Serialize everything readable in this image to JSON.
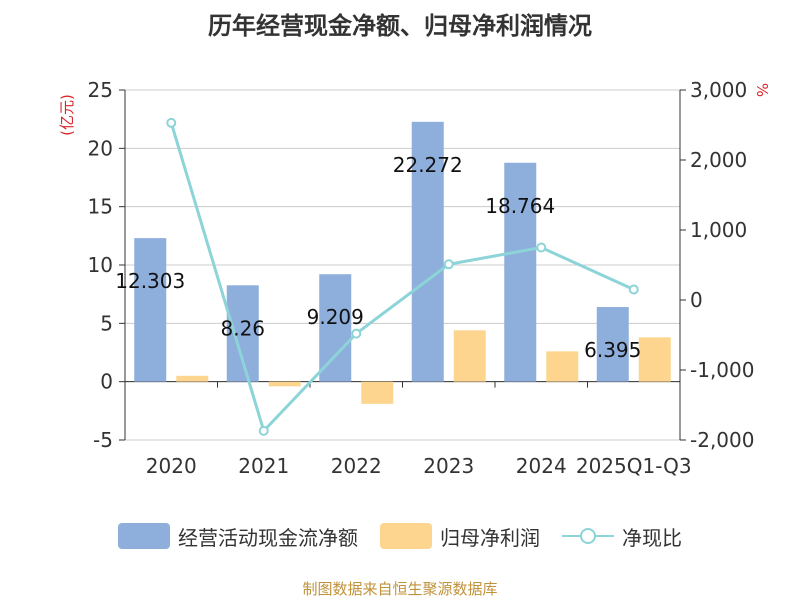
{
  "title": "历年经营现金净额、归母净利润情况",
  "source": "制图数据来自恒生聚源数据库",
  "colors": {
    "bar1": "#8eaedc",
    "bar2": "#fdd58e",
    "line": "#8dd4d8",
    "unit_left": "#d9262b",
    "unit_right": "#d9262b",
    "grid": "#cccccc",
    "text": "#333333"
  },
  "chart_data": {
    "type": "bar",
    "title": "历年经营现金净额、归母净利润情况",
    "categories": [
      "2020",
      "2021",
      "2022",
      "2023",
      "2024",
      "2025Q1-Q3"
    ],
    "y_left": {
      "unit": "(亿元)",
      "min": -5,
      "max": 25,
      "ticks": [
        -5,
        0,
        5,
        10,
        15,
        20,
        25
      ]
    },
    "y_right": {
      "unit": "%",
      "min": -2000,
      "max": 3000,
      "ticks": [
        -2000,
        -1000,
        0,
        1000,
        2000,
        3000
      ],
      "tick_labels": [
        "-2,000",
        "-1,000",
        "0",
        "1,000",
        "2,000",
        "3,000"
      ]
    },
    "series": [
      {
        "name": "经营活动现金流净额",
        "type": "bar",
        "axis": "left",
        "values": [
          12.303,
          8.26,
          9.209,
          22.272,
          18.764,
          6.395
        ],
        "data_labels": [
          "12.303",
          "8.26",
          "9.209",
          "22.272",
          "18.764",
          "6.395"
        ]
      },
      {
        "name": "归母净利润",
        "type": "bar",
        "axis": "left",
        "values": [
          0.5,
          -0.4,
          -1.9,
          4.4,
          2.6,
          3.8
        ]
      },
      {
        "name": "净现比",
        "type": "line",
        "axis": "right",
        "values": [
          2530,
          -1870,
          -480,
          510,
          750,
          150
        ]
      }
    ],
    "grid": true,
    "legend_position": "bottom"
  }
}
